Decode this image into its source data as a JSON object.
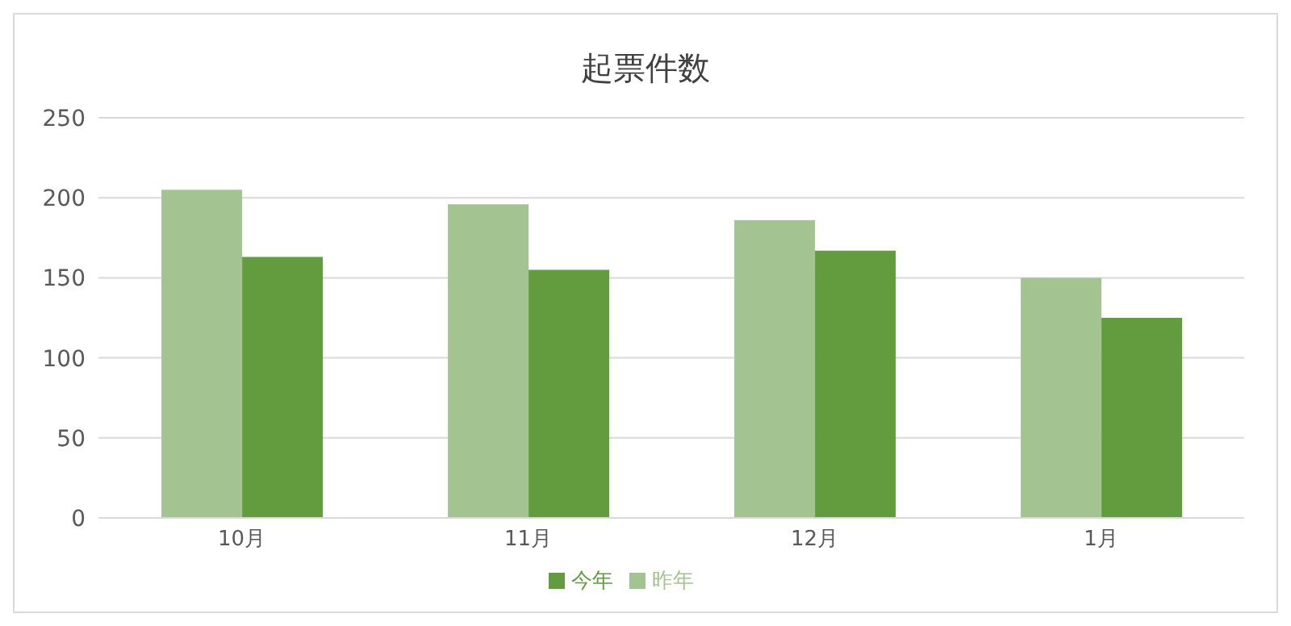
{
  "chart_data": {
    "type": "bar",
    "title": "起票件数",
    "categories": [
      "10月",
      "11月",
      "12月",
      "1月"
    ],
    "series": [
      {
        "name": "昨年",
        "color": "#a3c490",
        "values": [
          205,
          196,
          186,
          150
        ]
      },
      {
        "name": "今年",
        "color": "#629c3f",
        "values": [
          163,
          155,
          167,
          125
        ]
      }
    ],
    "ylim": [
      0,
      250
    ],
    "yticks": [
      0,
      50,
      100,
      150,
      200,
      250
    ],
    "grid": "y",
    "legend": "bottom"
  }
}
